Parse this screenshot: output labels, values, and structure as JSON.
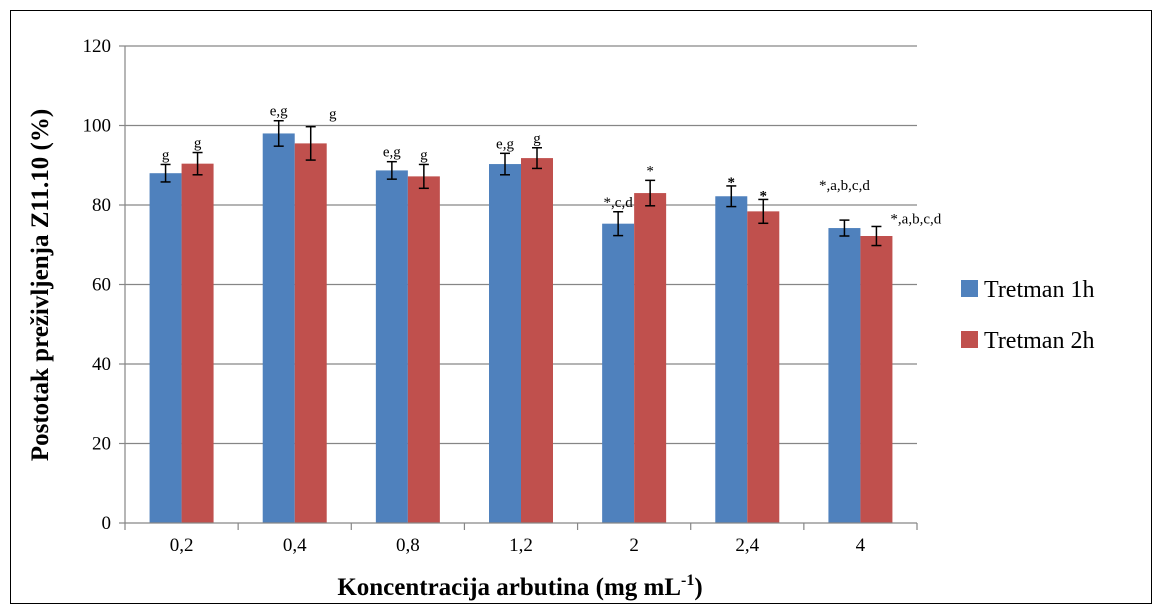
{
  "chart_data": {
    "type": "bar",
    "title": "",
    "xlabel": "Koncentracija arbutina (mg mL",
    "xlabel_sup": "-1",
    "xlabel_end": ")",
    "ylabel": "Postotak preživljenja Z11.10 (%)",
    "ylim": [
      0,
      120
    ],
    "yticks": [
      0,
      20,
      40,
      60,
      80,
      100,
      120
    ],
    "grid": true,
    "legend_position": "right",
    "categories": [
      "0,2",
      "0,4",
      "0,8",
      "1,2",
      "2",
      "2,4",
      "4"
    ],
    "series": [
      {
        "name": "Tretman 1h",
        "color": "#4f81bd",
        "values": [
          88,
          98,
          88.7,
          90.3,
          75.3,
          82.2,
          74.2
        ],
        "errors": [
          2.2,
          3.2,
          2.2,
          2.7,
          3.0,
          2.6,
          2.0
        ],
        "annotations": [
          "g",
          "e,g",
          "e,g",
          "e,g",
          "*,c,d",
          "*",
          "*,a,b,c,d"
        ]
      },
      {
        "name": "Tretman 2h",
        "color": "#c0504d",
        "values": [
          90.4,
          95.5,
          87.2,
          91.8,
          83,
          78.4,
          72.2
        ],
        "errors": [
          2.8,
          4.2,
          3.0,
          2.6,
          3.2,
          3.0,
          2.4
        ],
        "annotations": [
          "g",
          "g",
          "g",
          "g",
          "*",
          "*",
          "*,a,b,c,d"
        ]
      }
    ]
  }
}
